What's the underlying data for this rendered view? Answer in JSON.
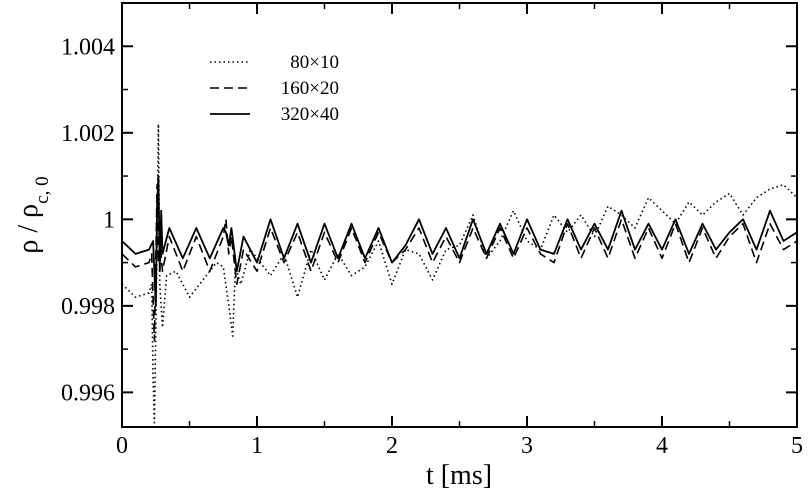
{
  "chart_data": {
    "type": "line",
    "xlabel": "t [ms]",
    "ylabel": {
      "main": "ρ / ρ",
      "sub": "c, 0"
    },
    "xlim": [
      0,
      5
    ],
    "ylim": [
      0.9952,
      1.005
    ],
    "xticks": [
      0,
      1,
      2,
      3,
      4,
      5
    ],
    "xtick_labels": [
      "0",
      "1",
      "2",
      "3",
      "4",
      "5"
    ],
    "yticks": [
      0.996,
      0.998,
      1.0,
      1.002,
      1.004
    ],
    "ytick_labels": [
      "0.996",
      "0.998",
      "1",
      "1.002",
      "1.004"
    ],
    "grid": false,
    "legend_position": "top-left",
    "series": [
      {
        "name": "80×10",
        "style": "dotted",
        "color": "#000000",
        "x": [
          0,
          0.1,
          0.2,
          0.22,
          0.23,
          0.24,
          0.26,
          0.27,
          0.28,
          0.3,
          0.33,
          0.4,
          0.5,
          0.6,
          0.7,
          0.75,
          0.8,
          0.82,
          0.84,
          0.88,
          0.95,
          1.1,
          1.2,
          1.3,
          1.4,
          1.5,
          1.6,
          1.7,
          1.8,
          1.9,
          2.0,
          2.1,
          2.2,
          2.3,
          2.4,
          2.5,
          2.6,
          2.7,
          2.8,
          2.9,
          3.0,
          3.1,
          3.2,
          3.3,
          3.4,
          3.5,
          3.6,
          3.7,
          3.8,
          3.9,
          4.0,
          4.1,
          4.2,
          4.3,
          4.4,
          4.5,
          4.6,
          4.7,
          4.8,
          4.9,
          5.0
        ],
        "y": [
          0.9985,
          0.9982,
          0.9983,
          0.9985,
          0.9963,
          0.9953,
          0.9995,
          1.0022,
          0.9985,
          0.9975,
          0.9987,
          0.9988,
          0.9982,
          0.9986,
          0.999,
          0.9989,
          0.9978,
          0.9973,
          0.9989,
          0.9985,
          0.9993,
          0.9987,
          0.9992,
          0.9982,
          0.9993,
          0.9986,
          0.9992,
          0.9987,
          0.9989,
          0.9995,
          0.9985,
          0.9993,
          0.9992,
          0.9986,
          0.9993,
          0.9994,
          1.0001,
          0.9991,
          0.9995,
          1.0002,
          0.9995,
          0.9993,
          1.0001,
          0.9997,
          1.0001,
          0.9996,
          1.0003,
          1.0001,
          0.9998,
          1.0005,
          1.0002,
          0.9999,
          1.0004,
          1.0001,
          1.0004,
          1.0006,
          1.0001,
          1.0005,
          1.0007,
          1.0008,
          1.0005
        ]
      },
      {
        "name": "160×20",
        "style": "dashed",
        "color": "#000000",
        "x": [
          0,
          0.1,
          0.2,
          0.22,
          0.24,
          0.26,
          0.27,
          0.28,
          0.3,
          0.35,
          0.45,
          0.55,
          0.65,
          0.75,
          0.77,
          0.79,
          0.81,
          0.85,
          0.9,
          1.0,
          1.1,
          1.2,
          1.3,
          1.4,
          1.5,
          1.6,
          1.7,
          1.8,
          1.9,
          2.0,
          2.1,
          2.2,
          2.3,
          2.4,
          2.5,
          2.6,
          2.7,
          2.8,
          2.9,
          3.0,
          3.1,
          3.2,
          3.3,
          3.4,
          3.5,
          3.6,
          3.7,
          3.8,
          3.9,
          4.0,
          4.1,
          4.2,
          4.3,
          4.4,
          4.5,
          4.6,
          4.7,
          4.8,
          4.9,
          5.0
        ],
        "y": [
          0.9992,
          0.9989,
          0.999,
          0.9992,
          0.9972,
          1.0008,
          0.999,
          0.9995,
          0.9988,
          0.9996,
          0.9988,
          0.9996,
          0.9988,
          0.9996,
          1.0,
          0.9992,
          0.9996,
          0.9985,
          0.9993,
          0.9988,
          0.9998,
          0.999,
          0.9997,
          0.9988,
          0.9997,
          0.999,
          0.9998,
          0.999,
          0.9997,
          0.999,
          0.9993,
          0.9998,
          0.999,
          0.9996,
          0.999,
          0.9998,
          0.9991,
          0.9998,
          0.9991,
          0.9998,
          0.9992,
          0.999,
          0.9999,
          0.9991,
          0.9998,
          0.9991,
          1.0,
          0.9991,
          0.9998,
          0.9991,
          0.9999,
          0.999,
          0.9998,
          0.9991,
          0.9996,
          0.9999,
          0.999,
          0.9999,
          0.9993,
          0.9995
        ]
      },
      {
        "name": "320×40",
        "style": "solid",
        "color": "#000000",
        "x": [
          0,
          0.1,
          0.2,
          0.23,
          0.25,
          0.26,
          0.27,
          0.28,
          0.29,
          0.3,
          0.35,
          0.45,
          0.55,
          0.65,
          0.75,
          0.77,
          0.79,
          0.81,
          0.85,
          0.9,
          1.0,
          1.1,
          1.2,
          1.3,
          1.4,
          1.5,
          1.6,
          1.7,
          1.8,
          1.9,
          2.0,
          2.1,
          2.2,
          2.3,
          2.4,
          2.5,
          2.6,
          2.7,
          2.8,
          2.9,
          3.0,
          3.1,
          3.2,
          3.3,
          3.4,
          3.5,
          3.6,
          3.7,
          3.8,
          3.9,
          4.0,
          4.1,
          4.2,
          4.3,
          4.4,
          4.5,
          4.6,
          4.7,
          4.8,
          4.9,
          5.0
        ],
        "y": [
          0.9995,
          0.9992,
          0.9993,
          0.9995,
          0.998,
          1.0003,
          1.001,
          0.9988,
          1.0002,
          0.9992,
          0.9998,
          0.9991,
          0.9998,
          0.9991,
          0.9998,
          0.9997,
          0.9994,
          0.9998,
          0.9988,
          0.9996,
          0.999,
          1.0,
          0.9991,
          0.9999,
          0.999,
          0.9999,
          0.9991,
          0.9999,
          0.9991,
          0.9998,
          0.999,
          0.9994,
          1.0,
          0.9992,
          0.9998,
          0.9991,
          1.0,
          0.9992,
          0.9999,
          0.9992,
          1.0,
          0.9993,
          0.9992,
          1.0,
          0.9993,
          0.9999,
          0.9993,
          1.0002,
          0.9993,
          0.9999,
          0.9993,
          1.0,
          0.9992,
          0.9999,
          0.9993,
          0.9997,
          1.0,
          0.9993,
          1.0002,
          0.9995,
          0.9997
        ]
      }
    ]
  }
}
